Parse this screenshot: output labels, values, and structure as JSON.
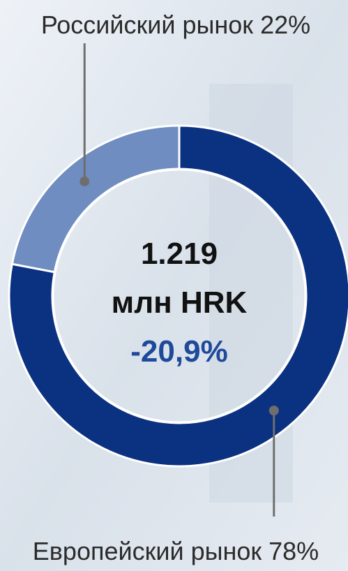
{
  "chart_data": {
    "type": "donut",
    "categories": [
      "Российский рынок",
      "Европейский рынок"
    ],
    "values": [
      22,
      78
    ],
    "value_labels": [
      "22%",
      "78%"
    ],
    "colors": [
      "#6f8dc0",
      "#0b3181"
    ],
    "annotations": [
      "1.219",
      "млн HRK",
      "-20,9%"
    ]
  }
}
